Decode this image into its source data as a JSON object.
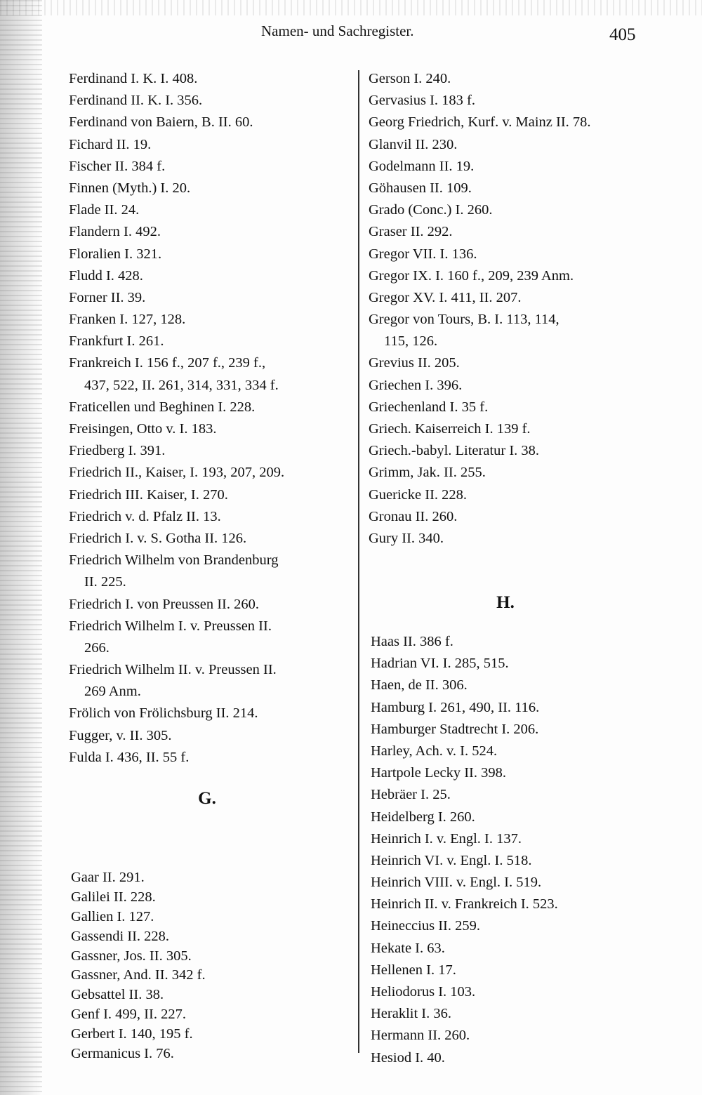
{
  "header": {
    "title": "Namen- und Sachregister.",
    "page_number": "405"
  },
  "left": {
    "f_entries": [
      [
        "Ferdinand I. K. I. 408."
      ],
      [
        "Ferdinand II. K. I. 356."
      ],
      [
        "Ferdinand von Baiern, B. II. 60."
      ],
      [
        "Fichard II. 19."
      ],
      [
        "Fischer II. 384 f."
      ],
      [
        "Finnen (Myth.) I. 20."
      ],
      [
        "Flade II. 24."
      ],
      [
        "Flandern I. 492."
      ],
      [
        "Floralien I. 321."
      ],
      [
        "Fludd I. 428."
      ],
      [
        "Forner II. 39."
      ],
      [
        "Franken I. 127, 128."
      ],
      [
        "Frankfurt I. 261."
      ],
      [
        "Frankreich I. 156 f., 207 f., 239 f.,",
        "437, 522, II. 261, 314, 331, 334 f."
      ],
      [
        "Fraticellen und Beghinen I. 228."
      ],
      [
        "Freisingen, Otto v. I. 183."
      ],
      [
        "Friedberg I. 391."
      ],
      [
        "Friedrich II., Kaiser, I. 193, 207, 209."
      ],
      [
        "Friedrich III. Kaiser, I. 270."
      ],
      [
        "Friedrich v. d. Pfalz II. 13."
      ],
      [
        "Friedrich I. v. S. Gotha II. 126."
      ],
      [
        "Friedrich Wilhelm von Brandenburg",
        "II. 225."
      ],
      [
        "Friedrich I. von Preussen II. 260."
      ],
      [
        "Friedrich Wilhelm I. v. Preussen II.",
        "266."
      ],
      [
        "Friedrich Wilhelm II. v. Preussen II.",
        "269 Anm."
      ],
      [
        "Frölich von Frölichsburg II. 214."
      ],
      [
        "Fugger, v. II. 305."
      ],
      [
        "Fulda I. 436, II. 55 f."
      ]
    ],
    "g_heading": "G.",
    "g_entries": [
      [
        "Gaar II. 291."
      ],
      [
        "Galilei II. 228."
      ],
      [
        "Gallien I. 127."
      ],
      [
        "Gassendi II. 228."
      ],
      [
        "Gassner, Jos. II. 305."
      ],
      [
        "Gassner, And. II. 342 f."
      ],
      [
        "Gebsattel II. 38."
      ],
      [
        "Genf I. 499, II. 227."
      ],
      [
        "Gerbert I. 140, 195 f."
      ],
      [
        "Germanicus I. 76."
      ]
    ]
  },
  "right": {
    "g_entries": [
      [
        "Gerson I. 240."
      ],
      [
        "Gervasius I. 183 f."
      ],
      [
        "Georg Friedrich, Kurf. v. Mainz II. 78."
      ],
      [
        "Glanvil II. 230."
      ],
      [
        "Godelmann II. 19."
      ],
      [
        "Göhausen II. 109."
      ],
      [
        "Grado (Conc.) I. 260."
      ],
      [
        "Graser II. 292."
      ],
      [
        "Gregor VII. I. 136."
      ],
      [
        "Gregor IX. I. 160 f., 209, 239 Anm."
      ],
      [
        "Gregor XV. I. 411, II. 207."
      ],
      [
        "Gregor von Tours, B. I. 113, 114,",
        "115, 126."
      ],
      [
        "Grevius II. 205."
      ],
      [
        "Griechen I. 396."
      ],
      [
        "Griechenland I. 35 f."
      ],
      [
        "Griech. Kaiserreich I. 139 f."
      ],
      [
        "Griech.-babyl. Literatur I. 38."
      ],
      [
        "Grimm, Jak. II. 255."
      ],
      [
        "Guericke II. 228."
      ],
      [
        "Gronau II. 260."
      ],
      [
        "Gury II. 340."
      ]
    ],
    "h_heading": "H.",
    "h_entries": [
      [
        "Haas II. 386 f."
      ],
      [
        "Hadrian VI. I. 285, 515."
      ],
      [
        "Haen, de II. 306."
      ],
      [
        "Hamburg I. 261, 490, II. 116."
      ],
      [
        "Hamburger Stadtrecht I. 206."
      ],
      [
        "Harley, Ach. v. I. 524."
      ],
      [
        "Hartpole Lecky II. 398."
      ],
      [
        "Hebräer I. 25."
      ],
      [
        "Heidelberg I. 260."
      ],
      [
        "Heinrich I. v. Engl. I. 137."
      ],
      [
        "Heinrich VI. v. Engl. I. 518."
      ],
      [
        "Heinrich VIII. v. Engl. I. 519."
      ],
      [
        "Heinrich II. v. Frankreich I. 523."
      ],
      [
        "Heineccius II. 259."
      ],
      [
        "Hekate I. 63."
      ],
      [
        "Hellenen I. 17."
      ],
      [
        "Heliodorus I. 103."
      ],
      [
        "Heraklit I. 36."
      ],
      [
        "Hermann II. 260."
      ],
      [
        "Hesiod I. 40."
      ]
    ]
  }
}
